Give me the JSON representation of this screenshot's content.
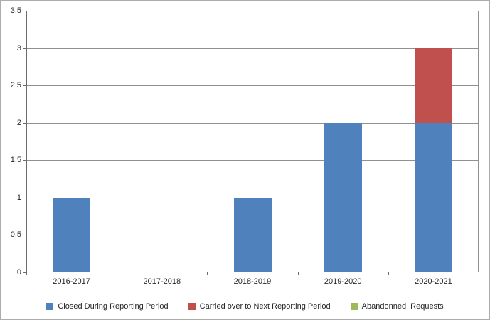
{
  "chart_data": {
    "type": "bar",
    "stacked": true,
    "title": "",
    "xlabel": "",
    "ylabel": "",
    "categories": [
      "2016-2017",
      "2017-2018",
      "2018-2019",
      "2019-2020",
      "2020-2021"
    ],
    "series": [
      {
        "name": "Closed During Reporting Period",
        "color": "#4F81BD",
        "values": [
          1,
          0,
          1,
          2,
          2
        ]
      },
      {
        "name": "Carried over to Next Reporting Period",
        "color": "#C0504D",
        "values": [
          0,
          0,
          0,
          0,
          1
        ]
      },
      {
        "name": "Abandonned  Requests",
        "color": "#9BBB59",
        "values": [
          0,
          0,
          0,
          0,
          0
        ]
      }
    ],
    "ylim": [
      0,
      3.5
    ],
    "ytick_step": 0.5,
    "ytick_labels": [
      "0",
      "0.5",
      "1",
      "1.5",
      "2",
      "2.5",
      "3",
      "3.5"
    ],
    "grid": true,
    "legend_position": "bottom"
  },
  "colors": {
    "background": "#FFFFFF",
    "gridline": "#919191",
    "axis": "#6B6B6B",
    "text": "#262626",
    "outer_border": "#ACACAC"
  }
}
